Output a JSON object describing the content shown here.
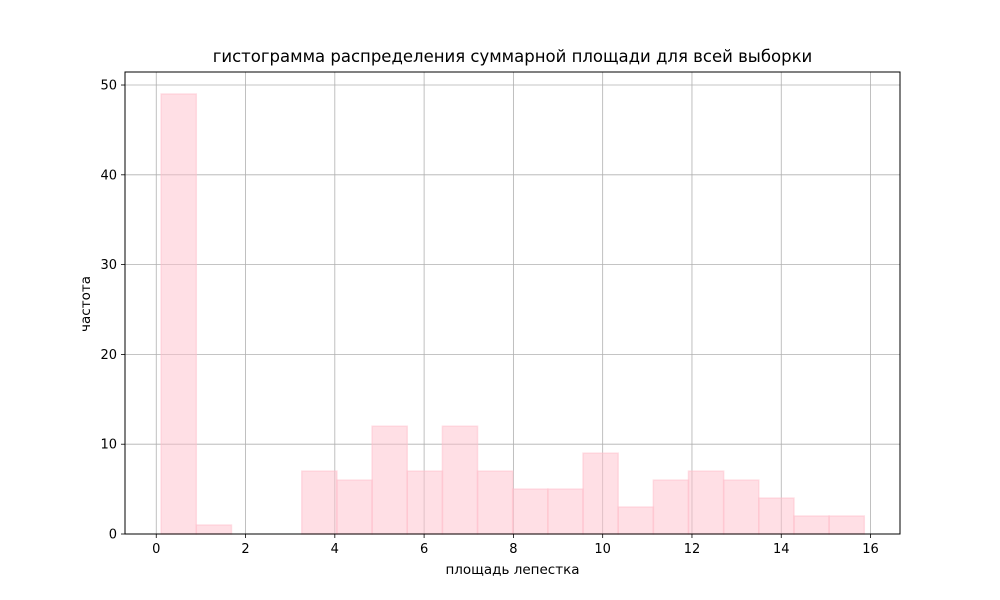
{
  "chart_data": {
    "type": "bar",
    "title": "гистограмма распределения суммарной площади  для всей выборки",
    "xlabel": "площадь лепестка",
    "ylabel": "частота",
    "xlim": [
      -0.7,
      16.66
    ],
    "ylim": [
      0,
      51.45
    ],
    "xticks": [
      0,
      2,
      4,
      6,
      8,
      10,
      12,
      14,
      16
    ],
    "yticks": [
      0,
      10,
      20,
      30,
      40,
      50
    ],
    "grid": true,
    "bar_color": "#ffc0cb",
    "bar_opacity": 0.5,
    "bin_edges": [
      0.11,
      0.897,
      1.685,
      2.472,
      3.26,
      4.047,
      4.835,
      5.622,
      6.41,
      7.197,
      7.985,
      8.772,
      9.56,
      10.347,
      11.135,
      11.922,
      12.71,
      13.497,
      14.285,
      15.072,
      15.86
    ],
    "values": [
      49,
      1,
      0,
      0,
      7,
      6,
      12,
      7,
      12,
      7,
      5,
      5,
      9,
      3,
      6,
      7,
      6,
      4,
      2,
      2
    ]
  }
}
